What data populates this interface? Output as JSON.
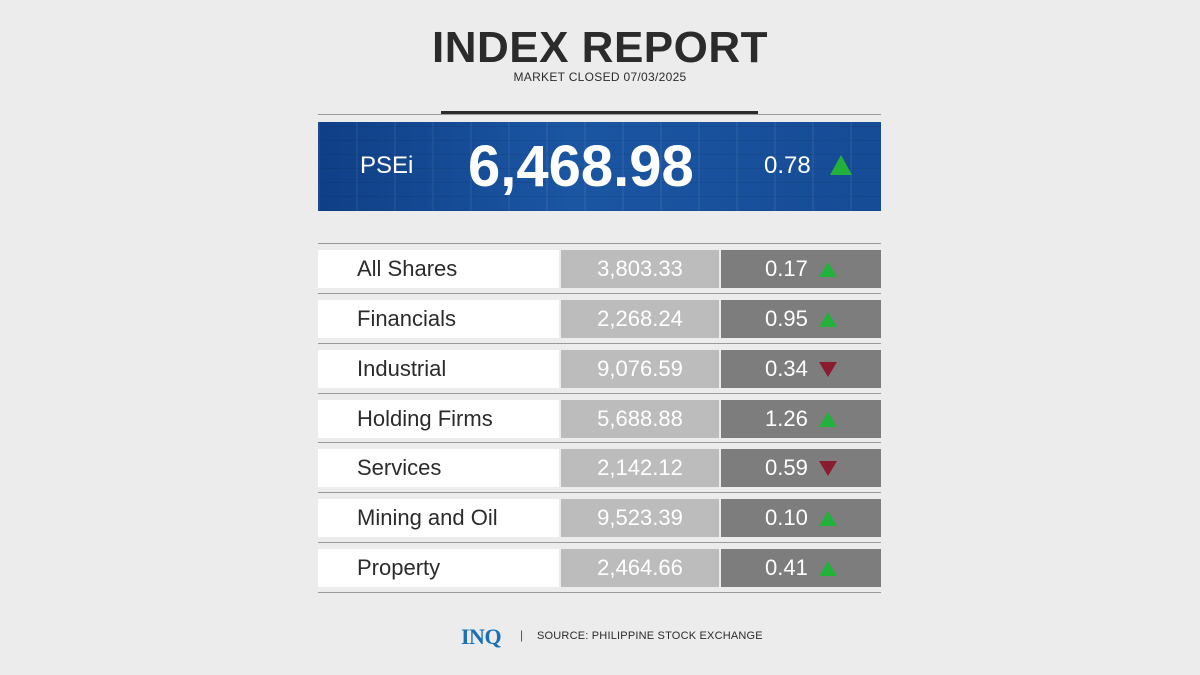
{
  "header": {
    "title": "INDEX REPORT",
    "subtitle": "MARKET CLOSED 07/03/2025"
  },
  "psei": {
    "label": "PSEi",
    "value": "6,468.98",
    "change": "0.78",
    "direction": "up"
  },
  "rows": [
    {
      "name": "All Shares",
      "value": "3,803.33",
      "change": "0.17",
      "direction": "up"
    },
    {
      "name": "Financials",
      "value": "2,268.24",
      "change": "0.95",
      "direction": "up"
    },
    {
      "name": "Industrial",
      "value": "9,076.59",
      "change": "0.34",
      "direction": "down"
    },
    {
      "name": "Holding Firms",
      "value": "5,688.88",
      "change": "1.26",
      "direction": "up"
    },
    {
      "name": "Services",
      "value": "2,142.12",
      "change": "0.59",
      "direction": "down"
    },
    {
      "name": "Mining and Oil",
      "value": "9,523.39",
      "change": "0.10",
      "direction": "up"
    },
    {
      "name": "Property",
      "value": "2,464.66",
      "change": "0.41",
      "direction": "up"
    }
  ],
  "footer": {
    "logo": "INQ",
    "separator": "|",
    "source": "SOURCE: PHILIPPINE STOCK EXCHANGE"
  },
  "colors": {
    "up": "#22b13a",
    "down": "#8b1c2f",
    "banner": "#1b56a3"
  }
}
